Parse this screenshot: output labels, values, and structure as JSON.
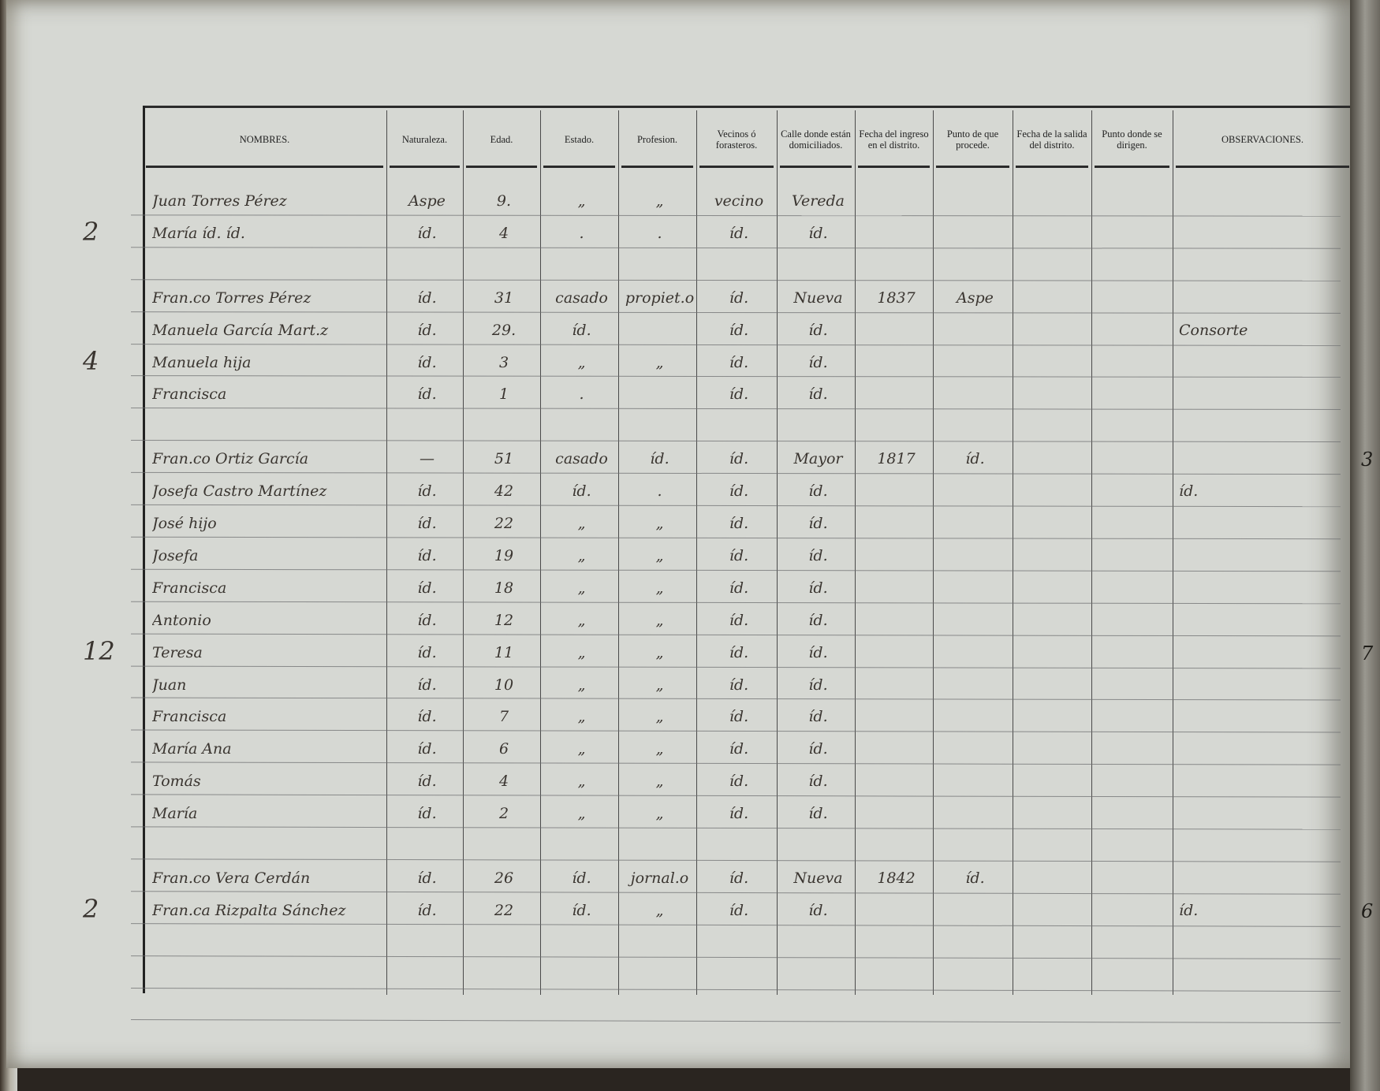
{
  "headers": [
    "NOMBRES.",
    "Naturaleza.",
    "Edad.",
    "Estado.",
    "Profesion.",
    "Vecinos ó forasteros.",
    "Calle donde están domiciliados.",
    "Fecha del ingreso en el distrito.",
    "Punto de que procede.",
    "Fecha de la salida del distrito.",
    "Punto donde se dirigen.",
    "OBSERVACIONES."
  ],
  "rows": [
    {
      "nombre": "Juan Torres Pérez",
      "naturaleza": "Aspe",
      "edad": "9.",
      "estado": "„",
      "profesion": "„",
      "vecinos": "vecino",
      "calle": "Vereda",
      "ingreso": "",
      "procede": "",
      "observaciones": ""
    },
    {
      "nombre": "María íd. íd.",
      "naturaleza": "íd.",
      "edad": "4",
      "estado": ".",
      "profesion": ".",
      "vecinos": "íd.",
      "calle": "íd.",
      "ingreso": "",
      "procede": "",
      "observaciones": ""
    },
    {},
    {
      "nombre": "Fran.co Torres Pérez",
      "naturaleza": "íd.",
      "edad": "31",
      "estado": "casado",
      "profesion": "propiet.o",
      "vecinos": "íd.",
      "calle": "Nueva",
      "ingreso": "1837",
      "procede": "Aspe",
      "observaciones": ""
    },
    {
      "nombre": "Manuela García Mart.z",
      "naturaleza": "íd.",
      "edad": "29.",
      "estado": "íd.",
      "profesion": "",
      "vecinos": "íd.",
      "calle": "íd.",
      "ingreso": "",
      "procede": "",
      "observaciones": "Consorte"
    },
    {
      "nombre": "Manuela hija",
      "naturaleza": "íd.",
      "edad": "3",
      "estado": "„",
      "profesion": "„",
      "vecinos": "íd.",
      "calle": "íd.",
      "ingreso": "",
      "procede": "",
      "observaciones": ""
    },
    {
      "nombre": "Francisca",
      "naturaleza": "íd.",
      "edad": "1",
      "estado": ".",
      "profesion": "",
      "vecinos": "íd.",
      "calle": "íd.",
      "ingreso": "",
      "procede": "",
      "observaciones": ""
    },
    {},
    {
      "nombre": "Fran.co Ortiz García",
      "naturaleza": "—",
      "edad": "51",
      "estado": "casado",
      "profesion": "íd.",
      "vecinos": "íd.",
      "calle": "Mayor",
      "ingreso": "1817",
      "procede": "íd.",
      "observaciones": ""
    },
    {
      "nombre": "Josefa Castro Martínez",
      "naturaleza": "íd.",
      "edad": "42",
      "estado": "íd.",
      "profesion": ".",
      "vecinos": "íd.",
      "calle": "íd.",
      "ingreso": "",
      "procede": "",
      "observaciones": "íd."
    },
    {
      "nombre": "José hijo",
      "naturaleza": "íd.",
      "edad": "22",
      "estado": "„",
      "profesion": "„",
      "vecinos": "íd.",
      "calle": "íd.",
      "ingreso": "",
      "procede": "",
      "observaciones": ""
    },
    {
      "nombre": "Josefa",
      "naturaleza": "íd.",
      "edad": "19",
      "estado": "„",
      "profesion": "„",
      "vecinos": "íd.",
      "calle": "íd.",
      "ingreso": "",
      "procede": "",
      "observaciones": ""
    },
    {
      "nombre": "Francisca",
      "naturaleza": "íd.",
      "edad": "18",
      "estado": "„",
      "profesion": "„",
      "vecinos": "íd.",
      "calle": "íd.",
      "ingreso": "",
      "procede": "",
      "observaciones": ""
    },
    {
      "nombre": "Antonio",
      "naturaleza": "íd.",
      "edad": "12",
      "estado": "„",
      "profesion": "„",
      "vecinos": "íd.",
      "calle": "íd.",
      "ingreso": "",
      "procede": "",
      "observaciones": ""
    },
    {
      "nombre": "Teresa",
      "naturaleza": "íd.",
      "edad": "11",
      "estado": "„",
      "profesion": "„",
      "vecinos": "íd.",
      "calle": "íd.",
      "ingreso": "",
      "procede": "",
      "observaciones": ""
    },
    {
      "nombre": "Juan",
      "naturaleza": "íd.",
      "edad": "10",
      "estado": "„",
      "profesion": "„",
      "vecinos": "íd.",
      "calle": "íd.",
      "ingreso": "",
      "procede": "",
      "observaciones": ""
    },
    {
      "nombre": "Francisca",
      "naturaleza": "íd.",
      "edad": "7",
      "estado": "„",
      "profesion": "„",
      "vecinos": "íd.",
      "calle": "íd.",
      "ingreso": "",
      "procede": "",
      "observaciones": ""
    },
    {
      "nombre": "María Ana",
      "naturaleza": "íd.",
      "edad": "6",
      "estado": "„",
      "profesion": "„",
      "vecinos": "íd.",
      "calle": "íd.",
      "ingreso": "",
      "procede": "",
      "observaciones": ""
    },
    {
      "nombre": "Tomás",
      "naturaleza": "íd.",
      "edad": "4",
      "estado": "„",
      "profesion": "„",
      "vecinos": "íd.",
      "calle": "íd.",
      "ingreso": "",
      "procede": "",
      "observaciones": ""
    },
    {
      "nombre": "María",
      "naturaleza": "íd.",
      "edad": "2",
      "estado": "„",
      "profesion": "„",
      "vecinos": "íd.",
      "calle": "íd.",
      "ingreso": "",
      "procede": "",
      "observaciones": ""
    },
    {},
    {
      "nombre": "Fran.co Vera Cerdán",
      "naturaleza": "íd.",
      "edad": "26",
      "estado": "íd.",
      "profesion": "jornal.o",
      "vecinos": "íd.",
      "calle": "Nueva",
      "ingreso": "1842",
      "procede": "íd.",
      "observaciones": ""
    },
    {
      "nombre": "Fran.ca Rizpalta Sánchez",
      "naturaleza": "íd.",
      "edad": "22",
      "estado": "íd.",
      "profesion": "„",
      "vecinos": "íd.",
      "calle": "íd.",
      "ingreso": "",
      "procede": "",
      "observaciones": "íd."
    }
  ],
  "household_counts": [
    {
      "row": 1,
      "value": "2"
    },
    {
      "row": 5,
      "value": "4"
    },
    {
      "row": 14,
      "value": "12"
    },
    {
      "row": 22,
      "value": "2"
    }
  ],
  "edge_marks": [
    {
      "row": 8,
      "value": "3"
    },
    {
      "row": 14,
      "value": "7"
    },
    {
      "row": 22,
      "value": "6"
    }
  ]
}
